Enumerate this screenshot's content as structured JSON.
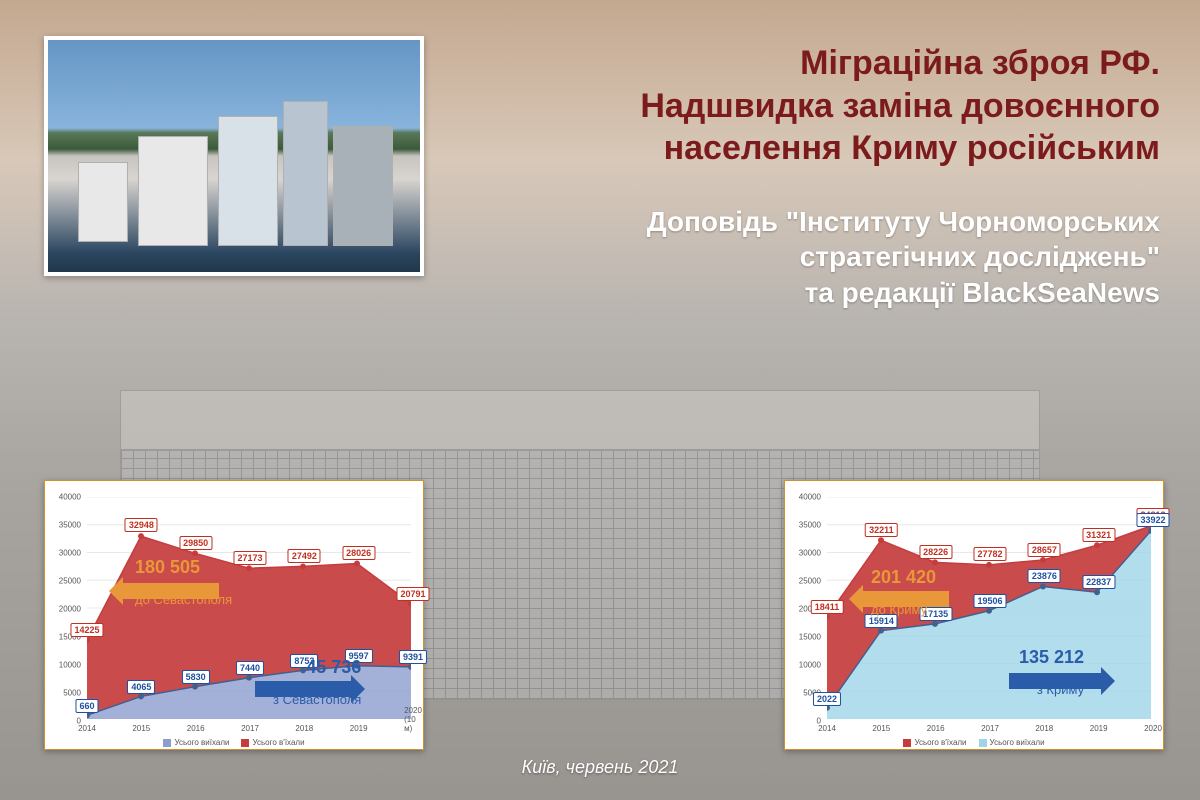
{
  "title": {
    "line1": "Міграційна зброя РФ.",
    "line2": "Надшвидка заміна довоєнного",
    "line3": "населення Криму російським",
    "color": "#7b1b1b",
    "fontsize": 34
  },
  "subtitle": {
    "line1": "Доповідь \"Інституту Чорноморських",
    "line2": "стратегічних досліджень\"",
    "line3": "та редакції BlackSeaNews",
    "color": "#ffffff",
    "fontsize": 28
  },
  "footer": {
    "text": "Київ, червень 2021",
    "color": "#ffffff"
  },
  "chart_left": {
    "type": "area",
    "years": [
      2014,
      2015,
      2016,
      2017,
      2018,
      2019,
      "2020 (10 м)"
    ],
    "series_top": {
      "name": "Усього в'їхали",
      "values": [
        14225,
        32948,
        29850,
        27173,
        27492,
        28026,
        20791
      ],
      "color": "#c53c3c",
      "labels": [
        "14225",
        "32948",
        "29850",
        "27173",
        "27492",
        "28026",
        "20791"
      ]
    },
    "series_bottom": {
      "name": "Усього виїхали",
      "values": [
        660,
        4065,
        5830,
        7440,
        8753,
        9597,
        9391
      ],
      "color": "#8c9ed0",
      "labels": [
        "660",
        "4065",
        "5830",
        "7440",
        "8753",
        "9597",
        "9391"
      ]
    },
    "ylim": [
      0,
      40000
    ],
    "ytick_step": 5000,
    "arrow_top": {
      "value": "180 505",
      "label": "до Севастополя",
      "color": "#e89838",
      "dir": "left"
    },
    "arrow_bottom": {
      "value": "45 736",
      "label": "з Севастополя",
      "color": "#2a5caa",
      "dir": "right"
    },
    "legend": [
      {
        "name": "Усього виїхали",
        "color": "#8c9ed0"
      },
      {
        "name": "Усього в'їхали",
        "color": "#c53c3c"
      }
    ],
    "grid_color": "#e8e8e8",
    "background_color": "#ffffff"
  },
  "chart_right": {
    "type": "area",
    "years": [
      2014,
      2015,
      2016,
      2017,
      2018,
      2019,
      2020
    ],
    "series_top": {
      "name": "Усього в'їхали",
      "values": [
        18411,
        32211,
        28226,
        27782,
        28657,
        31321,
        34812
      ],
      "color": "#c53c3c",
      "labels": [
        "18411",
        "32211",
        "28226",
        "27782",
        "28657",
        "31321",
        "34812"
      ]
    },
    "series_bottom": {
      "name": "Усього виїхали",
      "values": [
        2022,
        15914,
        17135,
        19506,
        23876,
        22837,
        33922
      ],
      "color": "#9fd4e8",
      "labels": [
        "2022",
        "15914",
        "17135",
        "19506",
        "23876",
        "22837",
        "33922"
      ]
    },
    "ylim": [
      0,
      40000
    ],
    "ytick_step": 5000,
    "arrow_top": {
      "value": "201 420",
      "label": "до Криму",
      "color": "#e89838",
      "dir": "left"
    },
    "arrow_bottom": {
      "value": "135 212",
      "label": "з Криму",
      "color": "#2a5caa",
      "dir": "right"
    },
    "legend": [
      {
        "name": "Усього в'їхали",
        "color": "#c53c3c"
      },
      {
        "name": "Усього виїхали",
        "color": "#9fd4e8"
      }
    ],
    "grid_color": "#e8e8e8",
    "background_color": "#ffffff"
  }
}
